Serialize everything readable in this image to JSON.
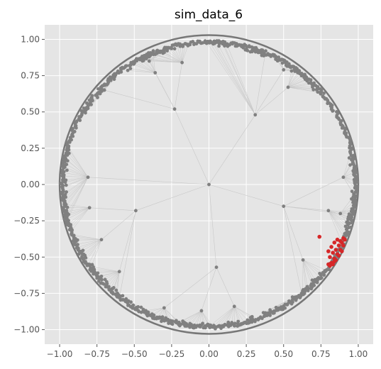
{
  "chart_data": {
    "type": "scatter",
    "title": "sim_data_6",
    "xlabel": "",
    "ylabel": "",
    "xlim": [
      -1.1,
      1.1
    ],
    "ylim": [
      -1.1,
      1.1
    ],
    "grid": true,
    "x_ticks": [
      -1.0,
      -0.75,
      -0.5,
      -0.25,
      0.0,
      0.25,
      0.5,
      0.75,
      1.0
    ],
    "y_ticks": [
      -1.0,
      -0.75,
      -0.5,
      -0.25,
      0.0,
      0.25,
      0.5,
      0.75,
      1.0
    ],
    "x_tick_labels": [
      "−1.00",
      "−0.75",
      "−0.50",
      "−0.25",
      "0.00",
      "0.25",
      "0.50",
      "0.75",
      "1.00"
    ],
    "y_tick_labels": [
      "−1.00",
      "−0.75",
      "−0.50",
      "−0.25",
      "0.00",
      "0.25",
      "0.50",
      "0.75",
      "1.00"
    ],
    "boundary_circle": {
      "center": [
        0,
        0
      ],
      "radius": 1.0
    },
    "colors": {
      "background": "#e5e5e5",
      "grid": "#ffffff",
      "node": "#808080",
      "edge": "#c8c8c8",
      "circle": "#777777",
      "highlight": "#d62728"
    },
    "internal_nodes": [
      {
        "id": "root",
        "x": 0.0,
        "y": 0.0
      },
      {
        "id": "a",
        "x": -0.23,
        "y": 0.52
      },
      {
        "id": "b",
        "x": 0.31,
        "y": 0.48
      },
      {
        "id": "c",
        "x": -0.81,
        "y": 0.05
      },
      {
        "id": "d",
        "x": -0.49,
        "y": -0.18
      },
      {
        "id": "e",
        "x": 0.05,
        "y": -0.57
      },
      {
        "id": "f",
        "x": 0.5,
        "y": -0.15
      },
      {
        "id": "g",
        "x": -0.7,
        "y": 0.65
      },
      {
        "id": "h",
        "x": -0.18,
        "y": 0.84
      },
      {
        "id": "i",
        "x": 0.53,
        "y": 0.67
      },
      {
        "id": "j",
        "x": 0.38,
        "y": 0.92
      },
      {
        "id": "k",
        "x": -0.8,
        "y": -0.16
      },
      {
        "id": "l",
        "x": -0.72,
        "y": -0.38
      },
      {
        "id": "m",
        "x": -0.6,
        "y": -0.6
      },
      {
        "id": "n",
        "x": -0.6,
        "y": -0.78
      },
      {
        "id": "o",
        "x": -0.3,
        "y": -0.85
      },
      {
        "id": "p",
        "x": -0.05,
        "y": -0.87
      },
      {
        "id": "q",
        "x": 0.17,
        "y": -0.84
      },
      {
        "id": "r",
        "x": 0.63,
        "y": -0.52
      },
      {
        "id": "s",
        "x": 0.62,
        "y": -0.75
      },
      {
        "id": "t",
        "x": 0.8,
        "y": -0.18
      },
      {
        "id": "u",
        "x": 0.88,
        "y": -0.2
      },
      {
        "id": "v",
        "x": 0.9,
        "y": 0.05
      },
      {
        "id": "w",
        "x": -0.36,
        "y": 0.77
      },
      {
        "id": "x",
        "x": -0.4,
        "y": 0.85
      },
      {
        "id": "y",
        "x": 0.5,
        "y": 0.79
      }
    ],
    "edges": [
      [
        "root",
        "a"
      ],
      [
        "root",
        "b"
      ],
      [
        "root",
        "c"
      ],
      [
        "root",
        "d"
      ],
      [
        "root",
        "e"
      ],
      [
        "root",
        "f"
      ],
      [
        "a",
        "g"
      ],
      [
        "a",
        "h"
      ],
      [
        "a",
        "w"
      ],
      [
        "a",
        "x"
      ],
      [
        "b",
        "i"
      ],
      [
        "b",
        "j"
      ],
      [
        "b",
        "y"
      ],
      [
        "d",
        "k"
      ],
      [
        "d",
        "l"
      ],
      [
        "d",
        "m"
      ],
      [
        "d",
        "n"
      ],
      [
        "e",
        "o"
      ],
      [
        "e",
        "p"
      ],
      [
        "e",
        "q"
      ],
      [
        "f",
        "r"
      ],
      [
        "f",
        "s"
      ],
      [
        "f",
        "t"
      ],
      [
        "f",
        "u"
      ],
      [
        "f",
        "v"
      ]
    ],
    "leaf_clusters": [
      {
        "parent": "g",
        "angle_from": 130,
        "angle_to": 150,
        "count": 18
      },
      {
        "parent": "h",
        "angle_from": 98,
        "angle_to": 120,
        "count": 20
      },
      {
        "parent": "x",
        "angle_from": 106,
        "angle_to": 118,
        "count": 10
      },
      {
        "parent": "w",
        "angle_from": 112,
        "angle_to": 126,
        "count": 10
      },
      {
        "parent": "j",
        "angle_from": 66,
        "angle_to": 80,
        "count": 14
      },
      {
        "parent": "i",
        "angle_from": 40,
        "angle_to": 56,
        "count": 16
      },
      {
        "parent": "y",
        "angle_from": 52,
        "angle_to": 64,
        "count": 10
      },
      {
        "parent": "b",
        "angle_from": 82,
        "angle_to": 92,
        "count": 8
      },
      {
        "parent": "c",
        "angle_from": 164,
        "angle_to": 196,
        "count": 26
      },
      {
        "parent": "k",
        "angle_from": 188,
        "angle_to": 200,
        "count": 10
      },
      {
        "parent": "l",
        "angle_from": 200,
        "angle_to": 216,
        "count": 14
      },
      {
        "parent": "m",
        "angle_from": 216,
        "angle_to": 232,
        "count": 16
      },
      {
        "parent": "n",
        "angle_from": 228,
        "angle_to": 244,
        "count": 14
      },
      {
        "parent": "o",
        "angle_from": 244,
        "angle_to": 260,
        "count": 14
      },
      {
        "parent": "p",
        "angle_from": 258,
        "angle_to": 272,
        "count": 14
      },
      {
        "parent": "q",
        "angle_from": 270,
        "angle_to": 290,
        "count": 16
      },
      {
        "parent": "s",
        "angle_from": 292,
        "angle_to": 312,
        "count": 18
      },
      {
        "parent": "r",
        "angle_from": 310,
        "angle_to": 324,
        "count": 10
      },
      {
        "parent": "t",
        "angle_from": 336,
        "angle_to": 350,
        "count": 12
      },
      {
        "parent": "u",
        "angle_from": 344,
        "angle_to": 356,
        "count": 10
      },
      {
        "parent": "v",
        "angle_from": 356,
        "angle_to": 372,
        "count": 14
      }
    ],
    "highlight_points": [
      {
        "x": 0.74,
        "y": -0.36
      },
      {
        "x": 0.8,
        "y": -0.46
      },
      {
        "x": 0.82,
        "y": -0.43
      },
      {
        "x": 0.84,
        "y": -0.4
      },
      {
        "x": 0.86,
        "y": -0.38
      },
      {
        "x": 0.88,
        "y": -0.39
      },
      {
        "x": 0.9,
        "y": -0.37
      },
      {
        "x": 0.81,
        "y": -0.5
      },
      {
        "x": 0.83,
        "y": -0.47
      },
      {
        "x": 0.85,
        "y": -0.45
      },
      {
        "x": 0.87,
        "y": -0.42
      },
      {
        "x": 0.89,
        "y": -0.4
      },
      {
        "x": 0.91,
        "y": -0.38
      },
      {
        "x": 0.82,
        "y": -0.54
      },
      {
        "x": 0.84,
        "y": -0.51
      },
      {
        "x": 0.86,
        "y": -0.48
      },
      {
        "x": 0.88,
        "y": -0.45
      },
      {
        "x": 0.9,
        "y": -0.42
      },
      {
        "x": 0.81,
        "y": -0.56
      },
      {
        "x": 0.83,
        "y": -0.55
      },
      {
        "x": 0.85,
        "y": -0.52
      },
      {
        "x": 0.87,
        "y": -0.49
      },
      {
        "x": 0.89,
        "y": -0.46
      },
      {
        "x": 0.8,
        "y": -0.55
      },
      {
        "x": 0.84,
        "y": -0.53
      }
    ]
  }
}
